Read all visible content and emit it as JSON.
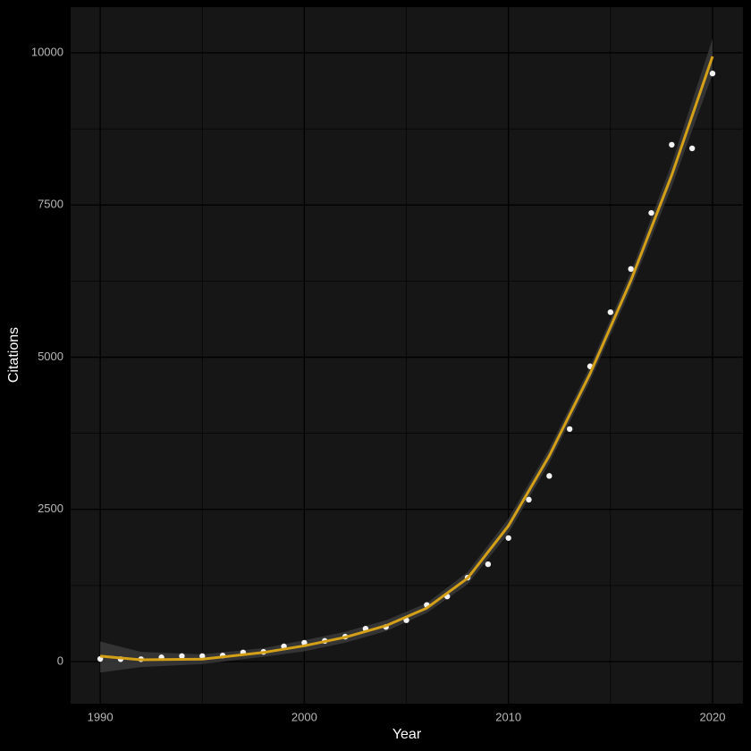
{
  "chart_data": {
    "type": "scatter",
    "x_label": "Year",
    "y_label": "Citations",
    "xlim": [
      1988.55,
      2021.49
    ],
    "ylim": [
      -690,
      10750
    ],
    "xticks": [
      1990,
      2000,
      2010,
      2020
    ],
    "yticks": [
      0,
      2500,
      5000,
      7500,
      10000
    ],
    "xminorticks": [
      1995,
      2005,
      2015
    ],
    "yminorticks": [
      1250,
      3750,
      6250,
      8750
    ],
    "grid": true,
    "panel_color": "#161616",
    "grid_color": "#000000",
    "points": {
      "color": "#f2f2f2",
      "x": [
        1990,
        1991,
        1992,
        1993,
        1994,
        1995,
        1996,
        1997,
        1998,
        1999,
        2000,
        2001,
        2002,
        2003,
        2004,
        2005,
        2006,
        2007,
        2008,
        2009,
        2010,
        2011,
        2012,
        2013,
        2014,
        2015,
        2016,
        2017,
        2018,
        2019,
        2020
      ],
      "values": [
        44,
        40,
        40,
        70,
        90,
        90,
        100,
        150,
        160,
        250,
        310,
        340,
        410,
        540,
        570,
        680,
        930,
        1070,
        1380,
        1600,
        2030,
        2660,
        3050,
        3820,
        4850,
        5740,
        6450,
        7370,
        8490,
        8430,
        9660
      ]
    },
    "smooth": {
      "color": "#d4a017",
      "band_color": "#3a3a3a",
      "x": [
        1990,
        1992,
        1995,
        1998,
        2000,
        2002,
        2004,
        2006,
        2008,
        2010,
        2012,
        2014,
        2016,
        2018,
        2020
      ],
      "values": [
        90,
        30,
        40,
        150,
        260,
        400,
        590,
        880,
        1370,
        2230,
        3380,
        4730,
        6260,
        7990,
        9940
      ],
      "lower": [
        -180,
        -90,
        -40,
        80,
        170,
        310,
        500,
        800,
        1270,
        2110,
        3260,
        4610,
        6120,
        7800,
        9650
      ],
      "upper": [
        330,
        160,
        120,
        220,
        350,
        490,
        680,
        960,
        1470,
        2350,
        3500,
        4850,
        6400,
        8180,
        10230
      ]
    }
  }
}
